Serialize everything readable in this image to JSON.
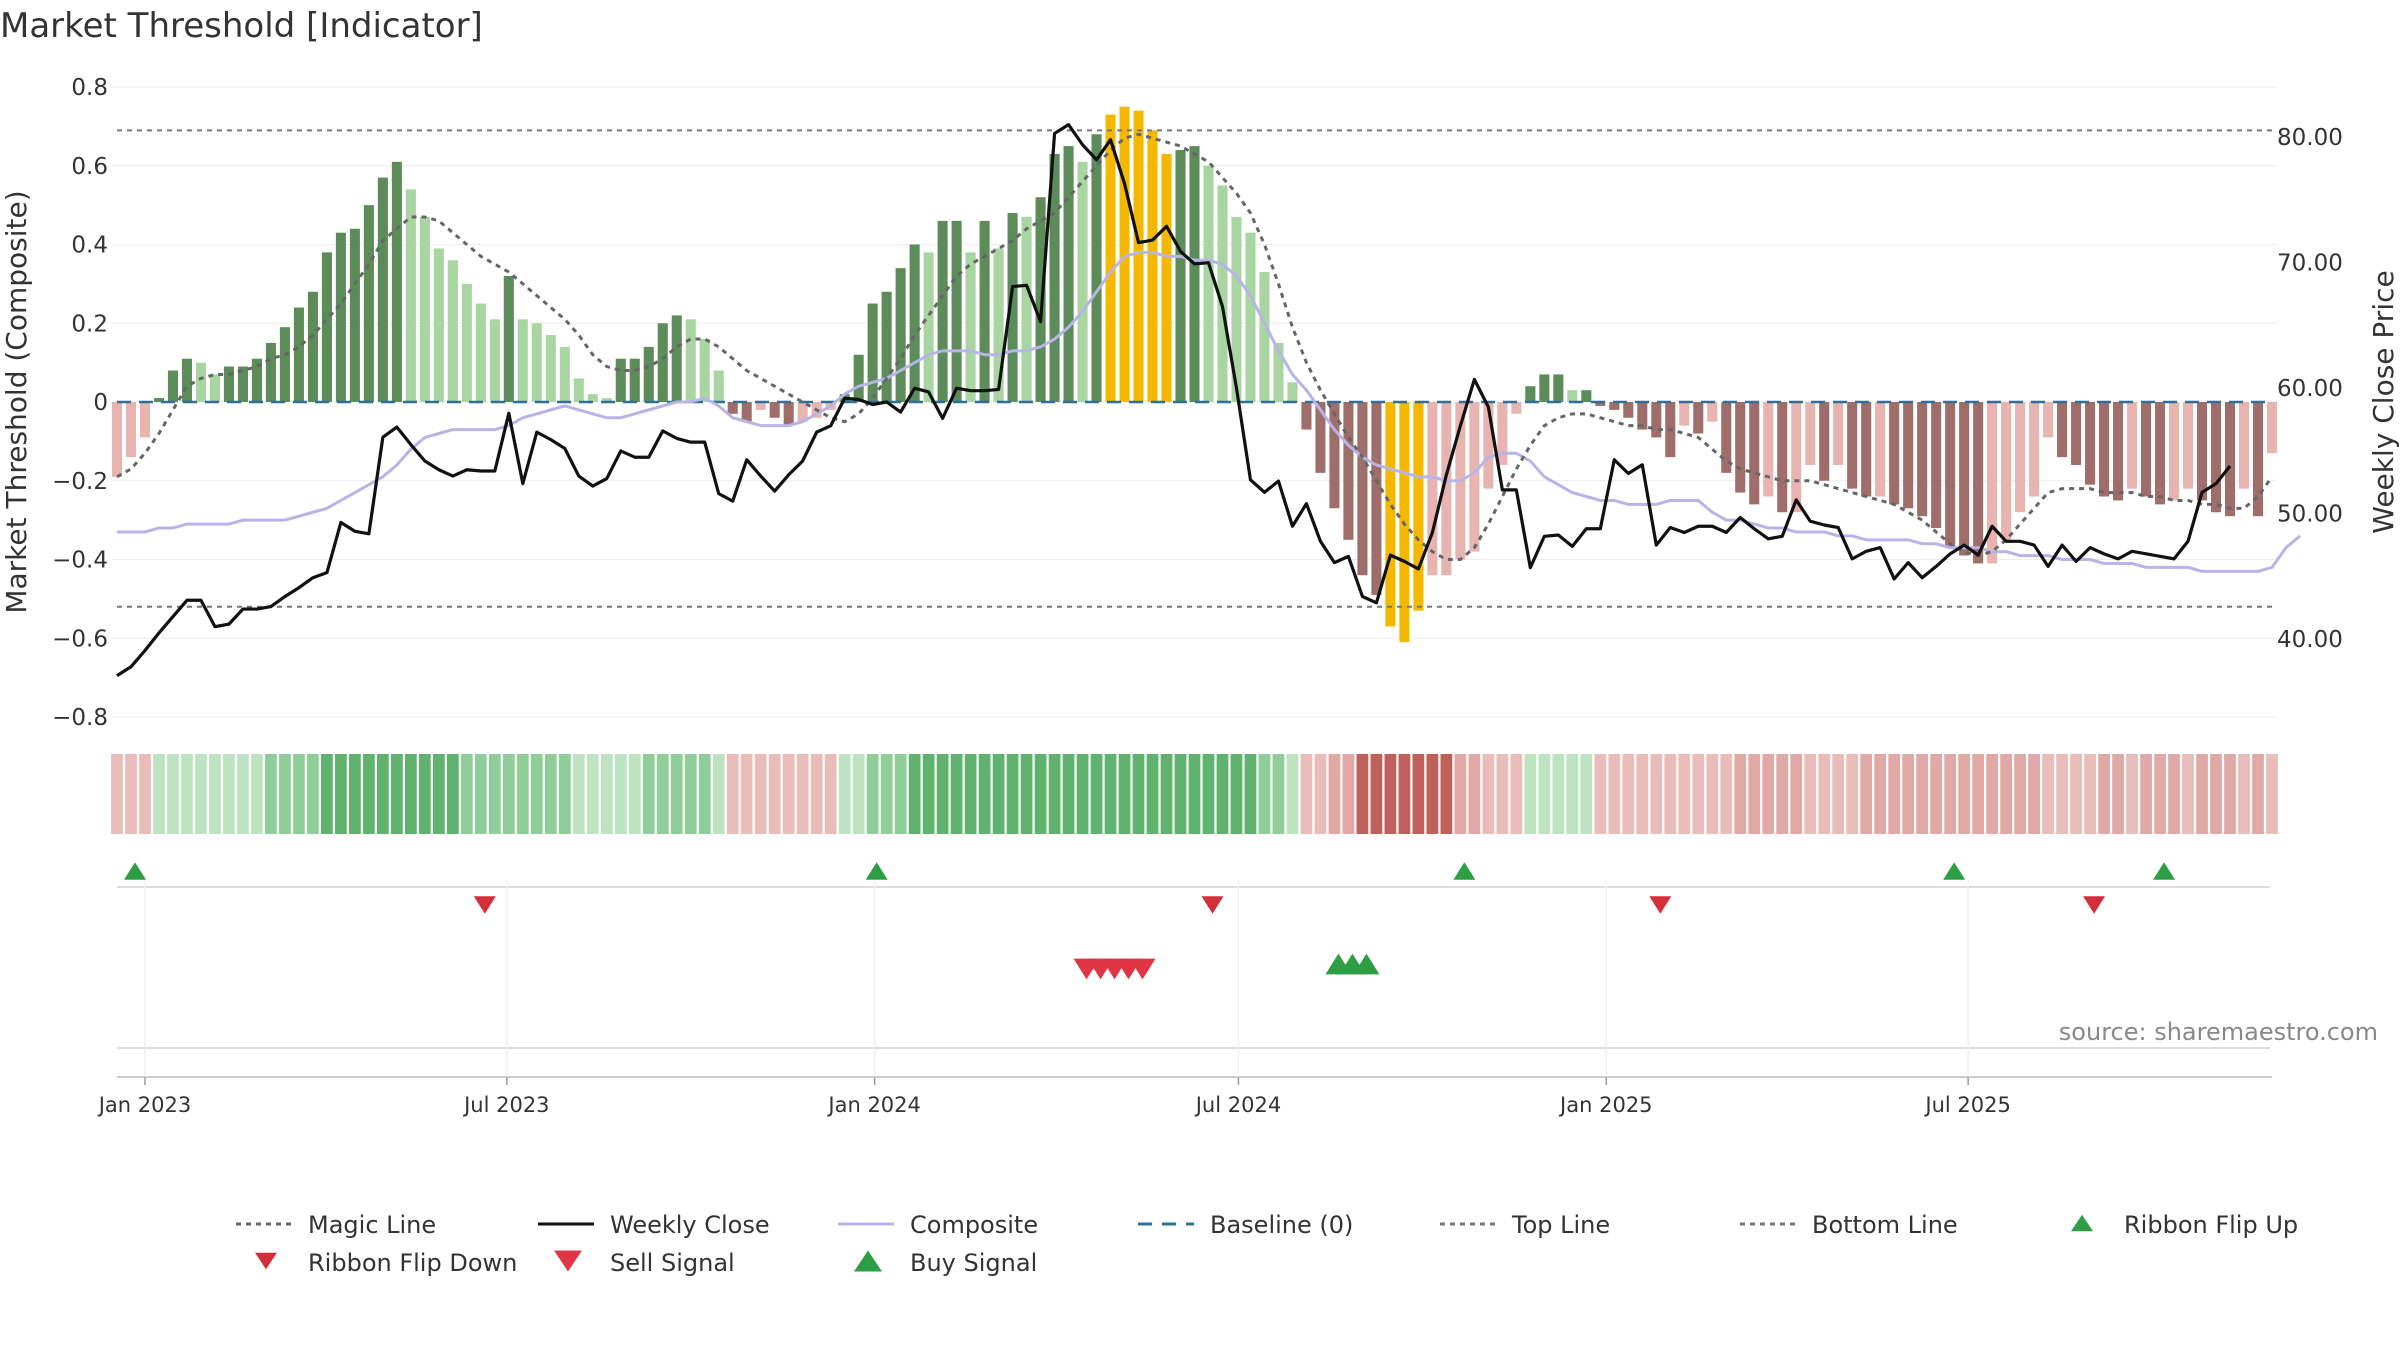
{
  "chart_data": {
    "type": "bar",
    "title": "Market Threshold [Indicator]",
    "ylabel": "Market Threshold (Composite)",
    "ylabel_right": "Weekly Close Price",
    "ylim": [
      -0.8,
      0.8
    ],
    "ylim_right": [
      33.8,
      84.0
    ],
    "yticks": [
      "0.8",
      "0.6",
      "0.4",
      "0.2",
      "0",
      "−0.2",
      "−0.4",
      "−0.6",
      "−0.8"
    ],
    "yticks_right": [
      "80.00",
      "70.00",
      "60.00",
      "50.00",
      "40.00"
    ],
    "xticks": [
      "Jan 2023",
      "Jul 2023",
      "Jan 2024",
      "Jul 2024",
      "Jan 2025",
      "Jul 2025"
    ],
    "xtick_dates": [
      "2023-01-01",
      "2023-07-01",
      "2024-01-01",
      "2024-07-01",
      "2025-01-01",
      "2025-07-01"
    ],
    "x_start": "2022-12-18",
    "x_step_days": 7,
    "top_line": 0.69,
    "bottom_line": -0.52,
    "baseline": 0,
    "grid": true,
    "legend_placement": "bottom",
    "bars": [
      -0.19,
      -0.14,
      -0.09,
      0.01,
      0.08,
      0.11,
      0.1,
      0.07,
      0.09,
      0.09,
      0.11,
      0.15,
      0.19,
      0.24,
      0.28,
      0.38,
      0.43,
      0.44,
      0.5,
      0.57,
      0.61,
      0.54,
      0.47,
      0.39,
      0.36,
      0.3,
      0.25,
      0.21,
      0.32,
      0.21,
      0.2,
      0.17,
      0.14,
      0.06,
      0.02,
      0.01,
      0.11,
      0.11,
      0.14,
      0.2,
      0.22,
      0.21,
      0.16,
      0.08,
      -0.03,
      -0.05,
      -0.02,
      -0.04,
      -0.06,
      -0.05,
      -0.04,
      -0.02,
      0.02,
      0.12,
      0.25,
      0.28,
      0.34,
      0.4,
      0.38,
      0.46,
      0.46,
      0.38,
      0.46,
      0.39,
      0.48,
      0.47,
      0.52,
      0.63,
      0.65,
      0.61,
      0.68,
      0.73,
      0.75,
      0.74,
      0.69,
      0.63,
      0.64,
      0.65,
      0.6,
      0.55,
      0.47,
      0.43,
      0.33,
      0.15,
      0.05,
      -0.07,
      -0.18,
      -0.27,
      -0.35,
      -0.44,
      -0.49,
      -0.57,
      -0.61,
      -0.53,
      -0.44,
      -0.44,
      -0.4,
      -0.38,
      -0.22,
      -0.16,
      -0.03,
      0.04,
      0.07,
      0.07,
      0.03,
      0.03,
      -0.01,
      -0.02,
      -0.04,
      -0.07,
      -0.09,
      -0.14,
      -0.06,
      -0.08,
      -0.05,
      -0.18,
      -0.23,
      -0.26,
      -0.24,
      -0.28,
      -0.28,
      -0.16,
      -0.2,
      -0.16,
      -0.22,
      -0.24,
      -0.24,
      -0.26,
      -0.27,
      -0.29,
      -0.32,
      -0.37,
      -0.39,
      -0.41,
      -0.41,
      -0.35,
      -0.28,
      -0.24,
      -0.09,
      -0.14,
      -0.16,
      -0.21,
      -0.24,
      -0.25,
      -0.22,
      -0.24,
      -0.26,
      -0.25,
      -0.22,
      -0.25,
      -0.28,
      -0.29,
      -0.22,
      -0.29,
      -0.13
    ],
    "bar_highlight": [
      0,
      0,
      0,
      0,
      0,
      0,
      0,
      0,
      0,
      0,
      0,
      0,
      0,
      0,
      0,
      0,
      0,
      0,
      0,
      0,
      0,
      0,
      0,
      0,
      0,
      0,
      0,
      0,
      0,
      0,
      0,
      0,
      0,
      0,
      0,
      0,
      0,
      0,
      0,
      0,
      0,
      0,
      0,
      0,
      0,
      0,
      0,
      0,
      0,
      0,
      0,
      0,
      0,
      0,
      0,
      0,
      0,
      0,
      0,
      0,
      0,
      0,
      0,
      0,
      0,
      0,
      0,
      0,
      0,
      0,
      0,
      1,
      1,
      1,
      1,
      1,
      0,
      0,
      0,
      0,
      0,
      0,
      0,
      0,
      0,
      0,
      0,
      0,
      0,
      0,
      0,
      1,
      1,
      1,
      0,
      0,
      0,
      0,
      0,
      0,
      0,
      0,
      0,
      0,
      0,
      0,
      0,
      0,
      0,
      0,
      0,
      0,
      0,
      0,
      0,
      0,
      0,
      0,
      0,
      0,
      0,
      0,
      0,
      0,
      0,
      0,
      0,
      0,
      0,
      0,
      0,
      0,
      0,
      0,
      0,
      0,
      0,
      0,
      0,
      0,
      0,
      0,
      0,
      0,
      0,
      0,
      0,
      0,
      0,
      0,
      0,
      0,
      0,
      0,
      0
    ],
    "series": [
      {
        "name": "Magic Line",
        "values": [
          -0.19,
          -0.17,
          -0.13,
          -0.08,
          -0.02,
          0.04,
          0.06,
          0.07,
          0.07,
          0.08,
          0.09,
          0.11,
          0.12,
          0.14,
          0.17,
          0.21,
          0.25,
          0.3,
          0.35,
          0.41,
          0.44,
          0.47,
          0.47,
          0.46,
          0.43,
          0.4,
          0.37,
          0.35,
          0.33,
          0.3,
          0.27,
          0.24,
          0.21,
          0.17,
          0.12,
          0.09,
          0.08,
          0.08,
          0.09,
          0.11,
          0.14,
          0.16,
          0.16,
          0.14,
          0.11,
          0.08,
          0.06,
          0.04,
          0.02,
          0.0,
          -0.02,
          -0.04,
          -0.05,
          -0.03,
          0.01,
          0.06,
          0.11,
          0.17,
          0.22,
          0.27,
          0.32,
          0.35,
          0.37,
          0.39,
          0.41,
          0.44,
          0.46,
          0.48,
          0.52,
          0.56,
          0.6,
          0.64,
          0.67,
          0.68,
          0.67,
          0.66,
          0.65,
          0.63,
          0.61,
          0.57,
          0.53,
          0.48,
          0.4,
          0.3,
          0.19,
          0.1,
          0.03,
          -0.03,
          -0.09,
          -0.14,
          -0.2,
          -0.26,
          -0.31,
          -0.35,
          -0.38,
          -0.4,
          -0.4,
          -0.37,
          -0.31,
          -0.24,
          -0.17,
          -0.11,
          -0.06,
          -0.04,
          -0.03,
          -0.03,
          -0.04,
          -0.05,
          -0.06,
          -0.06,
          -0.07,
          -0.07,
          -0.08,
          -0.09,
          -0.12,
          -0.15,
          -0.17,
          -0.18,
          -0.19,
          -0.2,
          -0.2,
          -0.2,
          -0.21,
          -0.22,
          -0.23,
          -0.24,
          -0.25,
          -0.26,
          -0.28,
          -0.3,
          -0.33,
          -0.36,
          -0.38,
          -0.39,
          -0.38,
          -0.35,
          -0.31,
          -0.27,
          -0.23,
          -0.22,
          -0.22,
          -0.22,
          -0.23,
          -0.23,
          -0.23,
          -0.24,
          -0.24,
          -0.25,
          -0.25,
          -0.26,
          -0.26,
          -0.27,
          -0.27,
          -0.24,
          -0.19
        ]
      },
      {
        "name": "Weekly Close",
        "values": [
          37.1,
          37.8,
          39.1,
          40.5,
          41.8,
          43.1,
          43.1,
          41.0,
          41.2,
          42.4,
          42.4,
          42.6,
          43.4,
          44.1,
          44.9,
          45.3,
          49.3,
          48.6,
          48.4,
          56.1,
          56.9,
          55.5,
          54.2,
          53.5,
          53.0,
          53.5,
          53.4,
          53.4,
          58.0,
          52.4,
          56.5,
          55.9,
          55.2,
          53.0,
          52.2,
          52.8,
          55.0,
          54.5,
          54.5,
          56.6,
          56.0,
          55.7,
          55.7,
          51.6,
          51.0,
          54.3,
          53.0,
          51.8,
          53.1,
          54.2,
          56.5,
          57.0,
          59.2,
          59.1,
          58.7,
          58.9,
          58.1,
          60.0,
          59.7,
          57.6,
          60.0,
          59.8,
          59.8,
          59.9,
          68.1,
          68.2,
          65.3,
          80.3,
          81.0,
          79.4,
          78.2,
          79.8,
          76.3,
          71.6,
          71.8,
          72.9,
          70.9,
          69.9,
          70.0,
          66.5,
          60.0,
          52.7,
          51.7,
          52.6,
          49.0,
          50.8,
          47.8,
          46.1,
          46.6,
          43.4,
          42.9,
          46.7,
          46.2,
          45.6,
          48.5,
          53.1,
          57.0,
          60.7,
          58.5,
          51.9,
          51.9,
          45.7,
          48.2,
          48.3,
          47.4,
          48.8,
          48.8,
          54.3,
          53.2,
          53.9,
          47.5,
          48.9,
          48.5,
          49.0,
          49.0,
          48.5,
          49.7,
          48.8,
          48.0,
          48.2,
          51.1,
          49.4,
          49.1,
          48.9,
          46.4,
          47.0,
          47.3,
          44.8,
          46.1,
          44.9,
          45.8,
          46.8,
          47.5,
          46.7,
          49.0,
          47.8,
          47.8,
          47.5,
          45.8,
          47.5,
          46.2,
          47.3,
          46.8,
          46.4,
          47.0,
          46.8,
          46.6,
          46.4,
          47.8,
          51.7,
          52.4,
          53.8
        ]
      },
      {
        "name": "Composite",
        "values": [
          -0.33,
          -0.33,
          -0.33,
          -0.32,
          -0.32,
          -0.31,
          -0.31,
          -0.31,
          -0.31,
          -0.3,
          -0.3,
          -0.3,
          -0.3,
          -0.29,
          -0.28,
          -0.27,
          -0.25,
          -0.23,
          -0.21,
          -0.19,
          -0.16,
          -0.12,
          -0.09,
          -0.08,
          -0.07,
          -0.07,
          -0.07,
          -0.07,
          -0.06,
          -0.04,
          -0.03,
          -0.02,
          -0.01,
          -0.02,
          -0.03,
          -0.04,
          -0.04,
          -0.03,
          -0.02,
          -0.01,
          0.0,
          0.0,
          0.01,
          -0.01,
          -0.04,
          -0.05,
          -0.06,
          -0.06,
          -0.06,
          -0.05,
          -0.03,
          -0.01,
          0.02,
          0.04,
          0.05,
          0.06,
          0.08,
          0.1,
          0.12,
          0.13,
          0.13,
          0.13,
          0.12,
          0.12,
          0.13,
          0.13,
          0.14,
          0.16,
          0.19,
          0.23,
          0.28,
          0.33,
          0.37,
          0.38,
          0.38,
          0.37,
          0.37,
          0.36,
          0.36,
          0.35,
          0.32,
          0.27,
          0.2,
          0.13,
          0.07,
          0.03,
          -0.02,
          -0.07,
          -0.11,
          -0.14,
          -0.16,
          -0.17,
          -0.18,
          -0.19,
          -0.19,
          -0.2,
          -0.2,
          -0.18,
          -0.14,
          -0.13,
          -0.13,
          -0.15,
          -0.19,
          -0.21,
          -0.23,
          -0.24,
          -0.25,
          -0.25,
          -0.26,
          -0.26,
          -0.26,
          -0.25,
          -0.25,
          -0.25,
          -0.28,
          -0.3,
          -0.3,
          -0.31,
          -0.32,
          -0.32,
          -0.33,
          -0.33,
          -0.33,
          -0.34,
          -0.34,
          -0.35,
          -0.35,
          -0.35,
          -0.35,
          -0.36,
          -0.36,
          -0.37,
          -0.37,
          -0.37,
          -0.38,
          -0.38,
          -0.39,
          -0.39,
          -0.39,
          -0.4,
          -0.4,
          -0.4,
          -0.41,
          -0.41,
          -0.41,
          -0.42,
          -0.42,
          -0.42,
          -0.42,
          -0.43,
          -0.43,
          -0.43,
          -0.43,
          -0.43,
          -0.42,
          -0.37,
          -0.34
        ]
      },
      {
        "name": "Baseline (0)"
      },
      {
        "name": "Top Line"
      },
      {
        "name": "Bottom Line"
      },
      {
        "name": "Ribbon Flip Up",
        "dates": [
          "2022-12-18",
          "2023-12-24",
          "2024-10-13",
          "2025-06-15",
          "2025-09-28"
        ]
      },
      {
        "name": "Ribbon Flip Down",
        "dates": [
          "2023-06-11",
          "2024-06-09",
          "2025-01-19",
          "2025-08-24"
        ]
      },
      {
        "name": "Sell Signal",
        "dates": [
          "2024-04-07",
          "2024-04-14",
          "2024-04-21",
          "2024-04-28",
          "2024-05-05"
        ]
      },
      {
        "name": "Buy Signal",
        "dates": [
          "2024-08-11",
          "2024-08-18",
          "2024-08-25"
        ]
      }
    ],
    "ribbon": [
      -1,
      1,
      2,
      3,
      3,
      3,
      3,
      3,
      3,
      3,
      3,
      3,
      3,
      3,
      3,
      3,
      3,
      2,
      2,
      2,
      2,
      2,
      2,
      2,
      2,
      2,
      2,
      2,
      2,
      1,
      -1,
      -1,
      -1,
      -1,
      -1,
      -1,
      -1,
      -1,
      -1,
      -1,
      -1,
      -2,
      -2,
      -2,
      -2,
      -2,
      -2,
      -2,
      -1,
      -1,
      -1,
      -1,
      -1,
      -1,
      -1,
      -1,
      -1,
      -1,
      -1,
      -1,
      -1,
      -1,
      -1,
      -1,
      -1,
      -1,
      -1,
      -1,
      -1,
      -1,
      -1,
      -1,
      -1,
      -1,
      -1,
      -1,
      -1,
      -1,
      -1,
      -1,
      -1,
      -1,
      -1,
      -1,
      -1,
      -1,
      -1,
      -1,
      -1,
      -1,
      -1,
      -1,
      -1,
      -1,
      -1,
      -1,
      -1,
      -1,
      -1,
      -1,
      -1,
      -1,
      -1,
      -1,
      -1,
      -1,
      -1,
      -1,
      -1,
      -1,
      -1,
      -1,
      -1,
      -1,
      -1,
      -1,
      -1,
      -1,
      -1,
      -1,
      -1,
      -1,
      -1,
      -1,
      -1,
      -1,
      -1,
      -1,
      -1,
      -1,
      -1,
      -1,
      -1,
      -1,
      -1,
      -1,
      -1,
      -1,
      -1,
      -1,
      -1,
      -1,
      -1,
      -1,
      -1,
      -1,
      -1,
      -1,
      -1,
      -1,
      -1,
      -1,
      -1,
      -1,
      -1
    ],
    "source": "source: sharemaestro.com"
  },
  "colors": {
    "bar_pos_strong": "#5b8c5a",
    "bar_pos_light": "#a8d5a2",
    "bar_neg_strong": "#a06e6a",
    "bar_neg_light": "#e8b4b0",
    "bar_highlight": "#f5b800",
    "magic_line": "#666666",
    "weekly_close": "#111111",
    "composite": "#b9b4e6",
    "baseline": "#2f6f9a",
    "threshold": "#777777",
    "flip_up": "#2e9e44",
    "flip_down": "#d22f3a",
    "sell": "#e03545",
    "buy": "#2e9e44"
  }
}
